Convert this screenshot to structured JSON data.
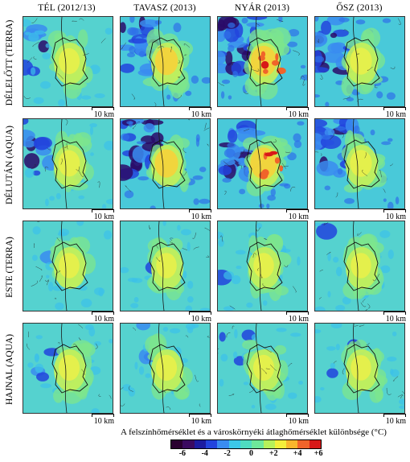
{
  "columns": [
    "TÉL (2012/13)",
    "TAVASZ (2013)",
    "NYÁR (2013)",
    "ŐSZ (2013)"
  ],
  "rows": [
    "DÉLELŐTT (TERRA)",
    "DÉLUTÁN (AQUA)",
    "ESTE (TERRA)",
    "HAJNAL (AQUA)"
  ],
  "scale_label": "10 km",
  "legend": {
    "title": "A felszínhőmérséklet és a városkörnyéki átlaghőmérséklet különbsége (°C)",
    "tick_labels": [
      "-6",
      "-4",
      "-2",
      "0",
      "+2",
      "+4",
      "+6"
    ],
    "colors": [
      "#2a0030",
      "#3b0a60",
      "#1c1ca0",
      "#2244dd",
      "#3a8cf0",
      "#3cc8e8",
      "#4fdcc0",
      "#6ee89a",
      "#b6f05a",
      "#f4ee3a",
      "#f8b52c",
      "#f0642a",
      "#d81818"
    ]
  }
}
